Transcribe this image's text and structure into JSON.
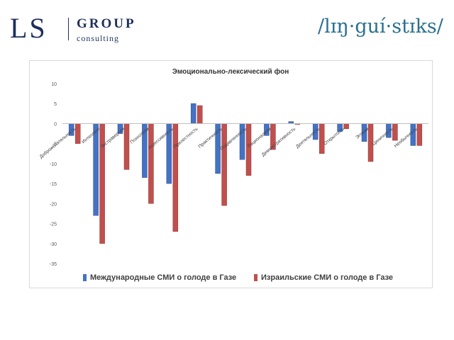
{
  "logos": {
    "ls_group": {
      "mark": "LS",
      "word": "GROUP",
      "sub": "consulting"
    },
    "linguistiks": {
      "text": "/lɪŋ·guí·stɪks/"
    }
  },
  "colors": {
    "series_1": "#4472c4",
    "series_2": "#c0504d",
    "brand_navy": "#1e2f5c",
    "brand_teal": "#2b6f8f"
  },
  "chart_data": {
    "type": "bar",
    "title": "Эмоционально-лексический фон",
    "xlabel": "",
    "ylabel": "",
    "ylim": [
      -35,
      10
    ],
    "yticks": [
      10,
      5,
      0,
      -5,
      -10,
      -15,
      -20,
      -25,
      -30,
      -35
    ],
    "grid": false,
    "legend_position": "bottom",
    "categories": [
      "Доброжелательность",
      "Интеллект",
      "Экстраверсия",
      "Психотизм",
      "Агрессивность",
      "Прелестность",
      "Практичность",
      "Подавленность",
      "Рационализм",
      "Демонстративность",
      "Деятельность",
      "Открытость",
      "Эгоизм",
      "Циничность",
      "Необычность"
    ],
    "series": [
      {
        "name": "Международные СМИ о голоде в Газе",
        "values": [
          -3,
          -23,
          -2.5,
          -13.5,
          -15,
          5,
          -12.5,
          -9,
          -3,
          0.5,
          -4,
          -2,
          -4.5,
          -3.5,
          -5.5
        ]
      },
      {
        "name": "Израильские СМИ о голоде в Газе",
        "values": [
          -5,
          -30,
          -11.5,
          -20,
          -27,
          4.5,
          -20.5,
          -13,
          -6.5,
          -0.2,
          -7.5,
          -1.3,
          -9.5,
          -4.2,
          -5.5
        ]
      }
    ]
  }
}
